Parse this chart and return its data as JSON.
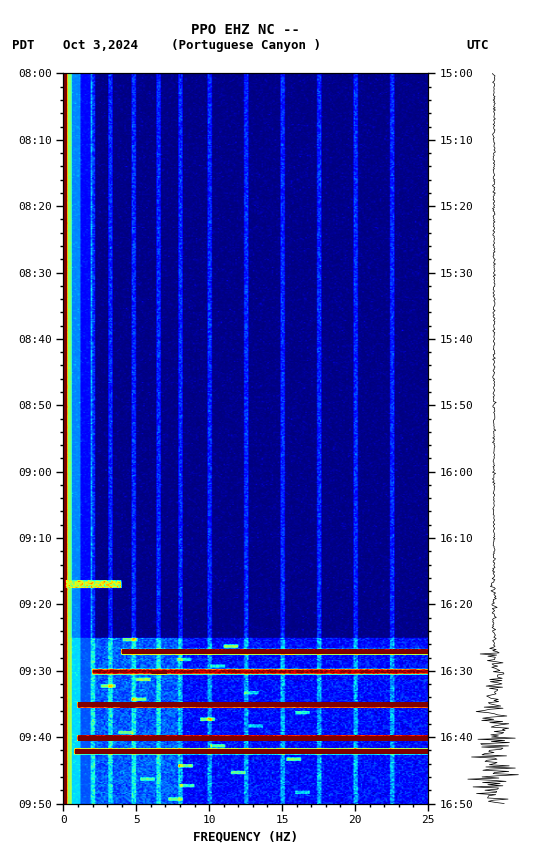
{
  "title_line1": "PPO EHZ NC --",
  "title_line2": "(Portuguese Canyon )",
  "left_label_pdt": "PDT",
  "left_label_date": "Oct 3,2024",
  "right_label": "UTC",
  "left_ytick_pos": [
    0,
    10,
    20,
    30,
    40,
    50,
    60,
    70,
    80,
    90,
    100,
    110
  ],
  "left_yticks": [
    "08:00",
    "08:10",
    "08:20",
    "08:30",
    "08:40",
    "08:50",
    "09:00",
    "09:10",
    "09:20",
    "09:30",
    "09:40",
    "09:50"
  ],
  "right_yticks": [
    "15:00",
    "15:10",
    "15:20",
    "15:30",
    "15:40",
    "15:50",
    "16:00",
    "16:10",
    "16:20",
    "16:30",
    "16:40",
    "16:50"
  ],
  "xlabel": "FREQUENCY (HZ)",
  "xmin": 0,
  "xmax": 25,
  "xticks": [
    0,
    5,
    10,
    15,
    20,
    25
  ],
  "xtick_labels": [
    "0",
    "5",
    "10",
    "15",
    "20",
    "25"
  ],
  "total_minutes": 110,
  "colormap": "jet",
  "vmin": 0,
  "vmax": 10
}
